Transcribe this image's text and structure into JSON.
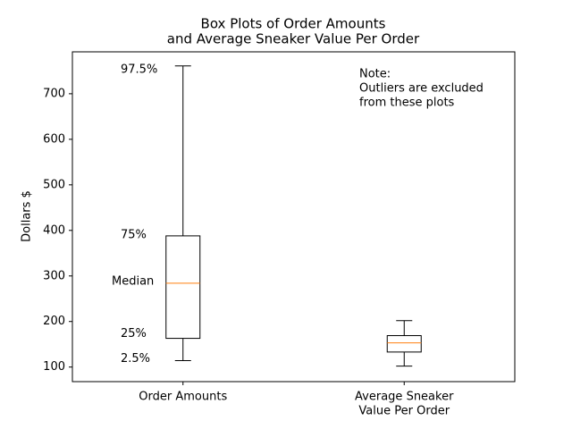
{
  "chart_data": {
    "type": "box",
    "title": [
      "Box Plots of Order Amounts",
      "and Average Sneaker Value Per Order"
    ],
    "ylabel": "Dollars $",
    "categories": [
      [
        "Order Amounts"
      ],
      [
        "Average Sneaker",
        "Value Per Order"
      ]
    ],
    "boxes": [
      {
        "whislo": 114,
        "q1": 163,
        "med": 284,
        "q3": 388,
        "whishi": 761
      },
      {
        "whislo": 102,
        "q1": 133,
        "med": 153,
        "q3": 169,
        "whishi": 202
      }
    ],
    "box_color": "#000000",
    "median_color": "#ff7f0e",
    "annotations": [
      "97.5%",
      "75%",
      "Median",
      "25%",
      "2.5%"
    ],
    "note": [
      "Note:",
      "Outliers are excluded",
      "from these plots"
    ],
    "ylim": [
      68,
      792
    ],
    "yticks": [
      100,
      200,
      300,
      400,
      500,
      600,
      700
    ],
    "grid": false
  }
}
